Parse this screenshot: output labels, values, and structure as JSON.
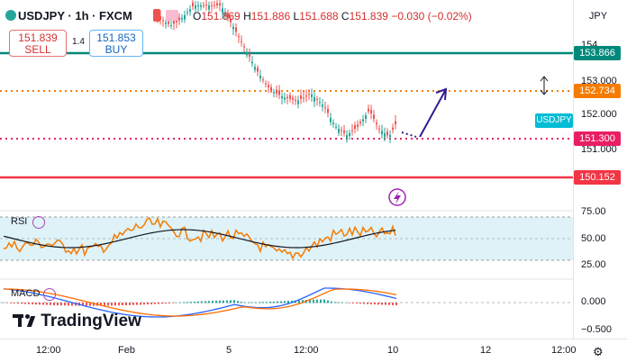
{
  "header": {
    "symbol": "USDJPY · 1h · FXCM",
    "ohlc_prefix_o": "O",
    "open": "151.869",
    "ohlc_prefix_h": "H",
    "high": "151.886",
    "ohlc_prefix_l": "L",
    "low": "151.688",
    "ohlc_prefix_c": "C",
    "close": "151.839",
    "change": "−0.030 (−0.02%)"
  },
  "trade": {
    "sell_price": "151.839",
    "sell_label": "SELL",
    "spread": "1.4",
    "buy_price": "151.853",
    "buy_label": "BUY"
  },
  "price_axis": {
    "currency": "JPY",
    "ticks": [
      "153.000",
      "152.000",
      "151.000"
    ],
    "partial_top": "154.",
    "levels": {
      "l1": {
        "text": "153.866",
        "color": "#00897b"
      },
      "l2": {
        "text": "152.734",
        "color": "#f57c00"
      },
      "l3": {
        "text": "151.300",
        "color": "#e91e63"
      },
      "l4": {
        "text": "150.152",
        "color": "#f23645"
      },
      "symbol_tag": {
        "text": "USDJPY",
        "color": "#00bcd4"
      }
    }
  },
  "rsi": {
    "label": "RSI",
    "ticks": [
      "75.00",
      "50.00",
      "25.00"
    ]
  },
  "macd": {
    "label": "MACD",
    "ticks": [
      "0.000",
      "−0.500"
    ]
  },
  "time_axis": {
    "labels": [
      "12:00",
      "Feb",
      "5",
      "12:00",
      "10",
      "12",
      "12:00"
    ]
  },
  "logo": "TradingView",
  "icons": {
    "settings": "gear-icon",
    "lightning": "lightning-icon",
    "resize": "vertical-resize-icon"
  },
  "colors": {
    "up": "#26a69a",
    "down": "#ef5350",
    "rsi_line": "#f57c00",
    "rsi_ma": "#131722",
    "macd_line": "#2962ff",
    "signal_line": "#ff6d00"
  }
}
